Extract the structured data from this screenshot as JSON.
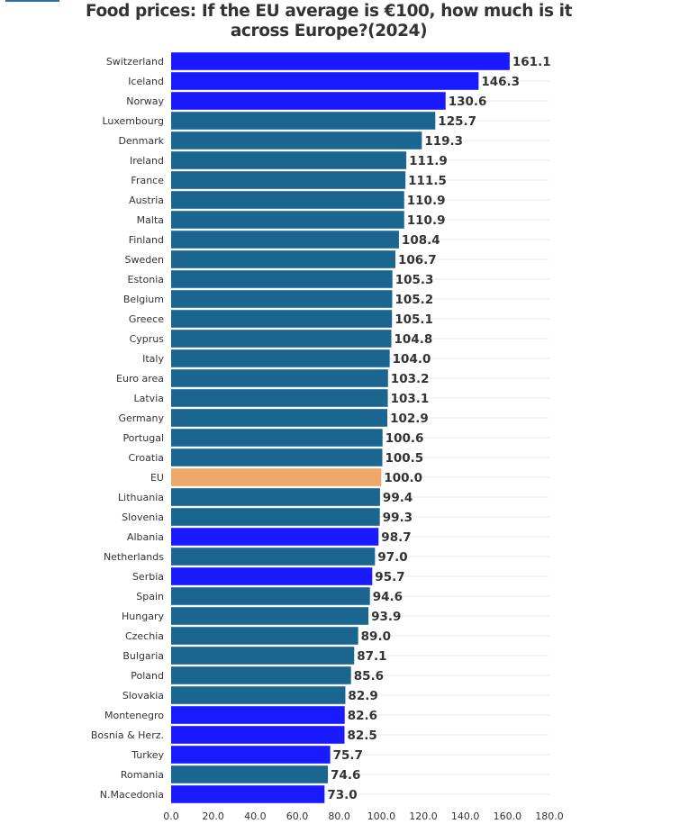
{
  "chart_data": {
    "type": "bar",
    "orientation": "horizontal",
    "title": "Food prices: If the EU average is €100, how much is it across Europe?(2024)",
    "title_lines": [
      "Food prices: If the EU average is €100, how much is it",
      "across Europe?(2024)"
    ],
    "xlabel": "",
    "ylabel": "",
    "xlim": [
      0,
      180
    ],
    "xticks": [
      0,
      20,
      40,
      60,
      80,
      100,
      120,
      140,
      160,
      180
    ],
    "xtick_labels": [
      "0.0",
      "20.0",
      "40.0",
      "60.0",
      "80.0",
      "100.0",
      "120.0",
      "140.0",
      "160.0",
      "180.0"
    ],
    "grid": true,
    "legend": "none",
    "colors": {
      "eu_member": "#1b6690",
      "non_eu": "#1a1aff",
      "eu_average": "#eda86b"
    },
    "categories": [
      "Switzerland",
      "Iceland",
      "Norway",
      "Luxembourg",
      "Denmark",
      "Ireland",
      "France",
      "Austria",
      "Malta",
      "Finland",
      "Sweden",
      "Estonia",
      "Belgium",
      "Greece",
      "Cyprus",
      "Italy",
      "Euro area",
      "Latvia",
      "Germany",
      "Portugal",
      "Croatia",
      "EU",
      "Lithuania",
      "Slovenia",
      "Albania",
      "Netherlands",
      "Serbia",
      "Spain",
      "Hungary",
      "Czechia",
      "Bulgaria",
      "Poland",
      "Slovakia",
      "Montenegro",
      "Bosnia & Herz.",
      "Turkey",
      "Romania",
      "N.Macedonia"
    ],
    "values": [
      161.1,
      146.3,
      130.6,
      125.7,
      119.3,
      111.9,
      111.5,
      110.9,
      110.9,
      108.4,
      106.7,
      105.3,
      105.2,
      105.1,
      104.8,
      104.0,
      103.2,
      103.1,
      102.9,
      100.6,
      100.5,
      100.0,
      99.4,
      99.3,
      98.7,
      97.0,
      95.7,
      94.6,
      93.9,
      89.0,
      87.1,
      85.6,
      82.9,
      82.6,
      82.5,
      75.7,
      74.6,
      73.0
    ],
    "value_labels": [
      "161.1",
      "146.3",
      "130.6",
      "125.7",
      "119.3",
      "111.9",
      "111.5",
      "110.9",
      "110.9",
      "108.4",
      "106.7",
      "105.3",
      "105.2",
      "105.1",
      "104.8",
      "104.0",
      "103.2",
      "103.1",
      "102.9",
      "100.6",
      "100.5",
      "100.0",
      "99.4",
      "99.3",
      "98.7",
      "97.0",
      "95.7",
      "94.6",
      "93.9",
      "89.0",
      "87.1",
      "85.6",
      "82.9",
      "82.6",
      "82.5",
      "75.7",
      "74.6",
      "73.0"
    ],
    "groups": [
      "non_eu",
      "non_eu",
      "non_eu",
      "eu_member",
      "eu_member",
      "eu_member",
      "eu_member",
      "eu_member",
      "eu_member",
      "eu_member",
      "eu_member",
      "eu_member",
      "eu_member",
      "eu_member",
      "eu_member",
      "eu_member",
      "eu_member",
      "eu_member",
      "eu_member",
      "eu_member",
      "eu_member",
      "eu_average",
      "eu_member",
      "eu_member",
      "non_eu",
      "eu_member",
      "non_eu",
      "eu_member",
      "eu_member",
      "eu_member",
      "eu_member",
      "eu_member",
      "eu_member",
      "non_eu",
      "non_eu",
      "non_eu",
      "eu_member",
      "non_eu"
    ]
  }
}
